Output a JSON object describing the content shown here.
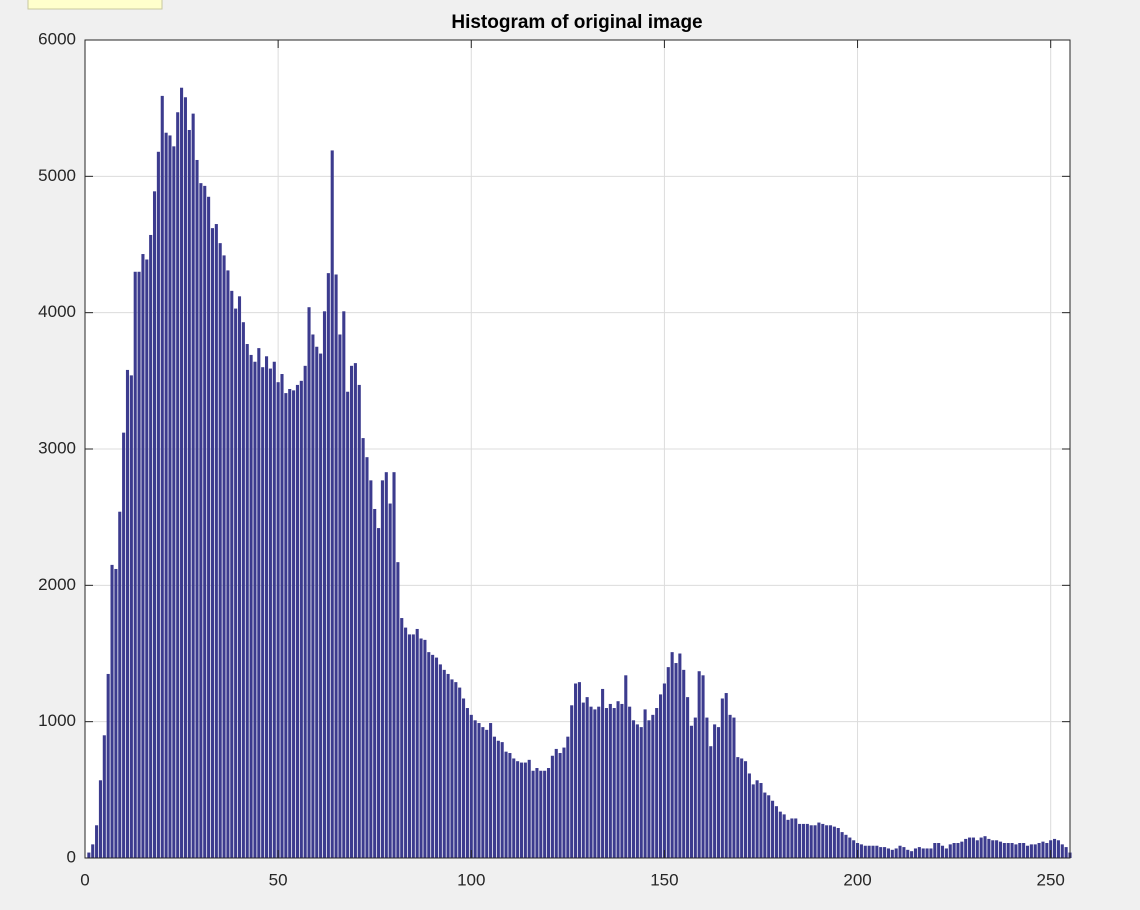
{
  "chart_data": {
    "type": "bar",
    "title": "Histogram of original image",
    "x": [
      0,
      1,
      2,
      3,
      4,
      5,
      6,
      7,
      8,
      9,
      10,
      11,
      12,
      13,
      14,
      15,
      16,
      17,
      18,
      19,
      20,
      21,
      22,
      23,
      24,
      25,
      26,
      27,
      28,
      29,
      30,
      31,
      32,
      33,
      34,
      35,
      36,
      37,
      38,
      39,
      40,
      41,
      42,
      43,
      44,
      45,
      46,
      47,
      48,
      49,
      50,
      51,
      52,
      53,
      54,
      55,
      56,
      57,
      58,
      59,
      60,
      61,
      62,
      63,
      64,
      65,
      66,
      67,
      68,
      69,
      70,
      71,
      72,
      73,
      74,
      75,
      76,
      77,
      78,
      79,
      80,
      81,
      82,
      83,
      84,
      85,
      86,
      87,
      88,
      89,
      90,
      91,
      92,
      93,
      94,
      95,
      96,
      97,
      98,
      99,
      100,
      101,
      102,
      103,
      104,
      105,
      106,
      107,
      108,
      109,
      110,
      111,
      112,
      113,
      114,
      115,
      116,
      117,
      118,
      119,
      120,
      121,
      122,
      123,
      124,
      125,
      126,
      127,
      128,
      129,
      130,
      131,
      132,
      133,
      134,
      135,
      136,
      137,
      138,
      139,
      140,
      141,
      142,
      143,
      144,
      145,
      146,
      147,
      148,
      149,
      150,
      151,
      152,
      153,
      154,
      155,
      156,
      157,
      158,
      159,
      160,
      161,
      162,
      163,
      164,
      165,
      166,
      167,
      168,
      169,
      170,
      171,
      172,
      173,
      174,
      175,
      176,
      177,
      178,
      179,
      180,
      181,
      182,
      183,
      184,
      185,
      186,
      187,
      188,
      189,
      190,
      191,
      192,
      193,
      194,
      195,
      196,
      197,
      198,
      199,
      200,
      201,
      202,
      203,
      204,
      205,
      206,
      207,
      208,
      209,
      210,
      211,
      212,
      213,
      214,
      215,
      216,
      217,
      218,
      219,
      220,
      221,
      222,
      223,
      224,
      225,
      226,
      227,
      228,
      229,
      230,
      231,
      232,
      233,
      234,
      235,
      236,
      237,
      238,
      239,
      240,
      241,
      242,
      243,
      244,
      245,
      246,
      247,
      248,
      249,
      250,
      251,
      252,
      253,
      254,
      255
    ],
    "values": [
      0,
      40,
      100,
      240,
      570,
      900,
      1350,
      2150,
      2120,
      2540,
      3120,
      3580,
      3540,
      4300,
      4300,
      4430,
      4390,
      4570,
      4890,
      5180,
      5590,
      5320,
      5300,
      5220,
      5470,
      5650,
      5580,
      5340,
      5460,
      5120,
      4950,
      4930,
      4850,
      4620,
      4650,
      4510,
      4420,
      4310,
      4160,
      4030,
      4120,
      3930,
      3770,
      3690,
      3640,
      3740,
      3600,
      3680,
      3590,
      3640,
      3490,
      3550,
      3410,
      3440,
      3430,
      3470,
      3500,
      3610,
      4040,
      3840,
      3750,
      3700,
      4010,
      4290,
      5190,
      4280,
      3840,
      4010,
      3420,
      3610,
      3630,
      3470,
      3080,
      2940,
      2770,
      2560,
      2420,
      2770,
      2830,
      2600,
      2830,
      2170,
      1760,
      1690,
      1640,
      1640,
      1680,
      1610,
      1600,
      1510,
      1490,
      1470,
      1420,
      1380,
      1350,
      1310,
      1290,
      1250,
      1170,
      1100,
      1050,
      1010,
      990,
      960,
      940,
      990,
      890,
      860,
      850,
      780,
      770,
      730,
      710,
      700,
      700,
      720,
      640,
      660,
      640,
      640,
      660,
      750,
      800,
      770,
      810,
      890,
      1120,
      1280,
      1290,
      1140,
      1180,
      1110,
      1090,
      1110,
      1240,
      1100,
      1130,
      1100,
      1150,
      1130,
      1340,
      1110,
      1010,
      980,
      960,
      1090,
      1010,
      1050,
      1100,
      1200,
      1280,
      1400,
      1510,
      1430,
      1500,
      1380,
      1180,
      970,
      1030,
      1370,
      1340,
      1030,
      820,
      980,
      960,
      1170,
      1210,
      1050,
      1030,
      740,
      730,
      710,
      620,
      540,
      570,
      550,
      480,
      460,
      420,
      380,
      340,
      320,
      280,
      290,
      290,
      250,
      250,
      250,
      240,
      240,
      260,
      250,
      240,
      240,
      230,
      220,
      190,
      170,
      150,
      130,
      110,
      100,
      90,
      90,
      90,
      90,
      80,
      80,
      70,
      60,
      70,
      90,
      80,
      60,
      50,
      70,
      80,
      70,
      70,
      70,
      110,
      110,
      90,
      70,
      100,
      110,
      110,
      120,
      140,
      150,
      150,
      130,
      150,
      160,
      140,
      130,
      130,
      120,
      110,
      110,
      110,
      100,
      110,
      110,
      90,
      100,
      100,
      110,
      120,
      110,
      130,
      140,
      130,
      100,
      80,
      40
    ],
    "color": "#3c3b8e",
    "xlim": [
      0,
      255
    ],
    "xticks": [
      0,
      50,
      100,
      150,
      200,
      250
    ],
    "ylim": [
      0,
      6000
    ],
    "yticks": [
      0,
      1000,
      2000,
      3000,
      4000,
      5000,
      6000
    ],
    "grid": true
  }
}
